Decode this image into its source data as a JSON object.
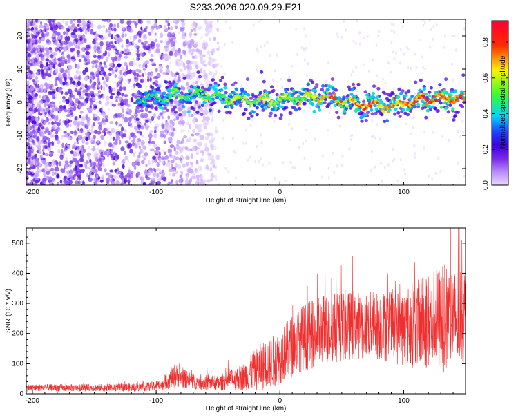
{
  "chart_data": [
    {
      "type": "heatmap",
      "title": "S233.2026.020.09.29.E21",
      "xlabel": "Height of straight line (km)",
      "ylabel": "Frequency (Hz)",
      "xlim": [
        -205,
        150
      ],
      "ylim": [
        -25,
        25
      ],
      "xticks": [
        -200,
        -100,
        0,
        100
      ],
      "yticks": [
        -20,
        -10,
        0,
        10,
        20
      ],
      "colorbar": {
        "label": "Normalized spectral amplitude",
        "range": [
          0.0,
          0.92
        ],
        "ticks": [
          0.0,
          0.2,
          0.4,
          0.6,
          0.8
        ]
      },
      "ridge": {
        "start_x": -115,
        "center_hz": [
          [
            -115,
            1.0
          ],
          [
            -60,
            2.5
          ],
          [
            -30,
            0.5
          ],
          [
            0,
            0.5
          ],
          [
            30,
            2.0
          ],
          [
            60,
            -0.5
          ],
          [
            90,
            -1.0
          ],
          [
            120,
            1.0
          ],
          [
            150,
            1.0
          ]
        ],
        "peak_amplitude": 0.85
      },
      "noise_region": {
        "x_from": -205,
        "x_to": -90,
        "y_range": [
          -25,
          25
        ]
      },
      "colors": [
        "#ffffff",
        "#e9d8ff",
        "#b88cff",
        "#7a2be6",
        "#3d00e0",
        "#1f3dff",
        "#00d4ff",
        "#37ff2b",
        "#fff100",
        "#ff2a00"
      ]
    },
    {
      "type": "line",
      "xlabel": "Height of straight line (km)",
      "ylabel": "SNR (10 * v/v)",
      "xlim": [
        -205,
        150
      ],
      "ylim": [
        0,
        550
      ],
      "xticks": [
        -200,
        -100,
        0,
        100
      ],
      "yticks": [
        0,
        100,
        200,
        300,
        400,
        500
      ],
      "line_color": "#ef3030",
      "envelope": [
        {
          "x": -205,
          "mean": 20,
          "spread": 12
        },
        {
          "x": -150,
          "mean": 20,
          "spread": 12
        },
        {
          "x": -110,
          "mean": 22,
          "spread": 14
        },
        {
          "x": -95,
          "mean": 30,
          "spread": 18
        },
        {
          "x": -85,
          "mean": 60,
          "spread": 40
        },
        {
          "x": -70,
          "mean": 40,
          "spread": 25
        },
        {
          "x": -50,
          "mean": 35,
          "spread": 25
        },
        {
          "x": -30,
          "mean": 55,
          "spread": 45
        },
        {
          "x": -15,
          "mean": 90,
          "spread": 80
        },
        {
          "x": 0,
          "mean": 120,
          "spread": 90
        },
        {
          "x": 15,
          "mean": 180,
          "spread": 110
        },
        {
          "x": 40,
          "mean": 220,
          "spread": 120
        },
        {
          "x": 70,
          "mean": 230,
          "spread": 110
        },
        {
          "x": 100,
          "mean": 220,
          "spread": 130
        },
        {
          "x": 130,
          "mean": 250,
          "spread": 180
        },
        {
          "x": 150,
          "mean": 260,
          "spread": 170
        }
      ]
    }
  ]
}
